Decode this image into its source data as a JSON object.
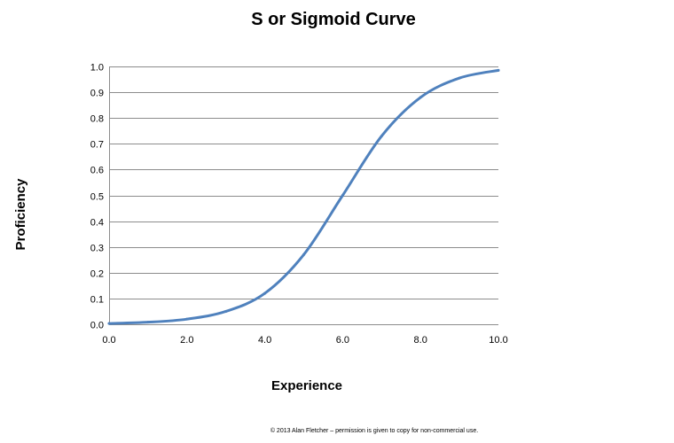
{
  "chart_data": {
    "type": "line",
    "title": "S or Sigmoid Curve",
    "xlabel": "Experience",
    "ylabel": "Proficiency",
    "xlim": [
      0,
      10
    ],
    "ylim": [
      0,
      1
    ],
    "grid": "horizontal",
    "legend": "none",
    "x_ticks": [
      "0.0",
      "2.0",
      "4.0",
      "6.0",
      "8.0",
      "10.0"
    ],
    "x_tick_values": [
      0,
      2,
      4,
      6,
      8,
      10
    ],
    "y_ticks": [
      "0.0",
      "0.1",
      "0.2",
      "0.3",
      "0.4",
      "0.5",
      "0.6",
      "0.7",
      "0.8",
      "0.9",
      "1.0"
    ],
    "y_tick_values": [
      0,
      0.1,
      0.2,
      0.3,
      0.4,
      0.5,
      0.6,
      0.7,
      0.8,
      0.9,
      1.0
    ],
    "series": [
      {
        "color": "#4f81bd",
        "x": [
          0.0,
          1.0,
          2.0,
          3.0,
          4.0,
          5.0,
          6.0,
          7.0,
          8.0,
          9.0,
          10.0
        ],
        "y": [
          0.003,
          0.008,
          0.02,
          0.05,
          0.12,
          0.27,
          0.5,
          0.73,
          0.88,
          0.955,
          0.985
        ]
      }
    ]
  },
  "footer": {
    "text": "© 2013 Alan Fletcher – permission is given to copy for non-commercial use."
  },
  "colors": {
    "gridline": "#8c8c8c",
    "line": "#4f81bd"
  }
}
